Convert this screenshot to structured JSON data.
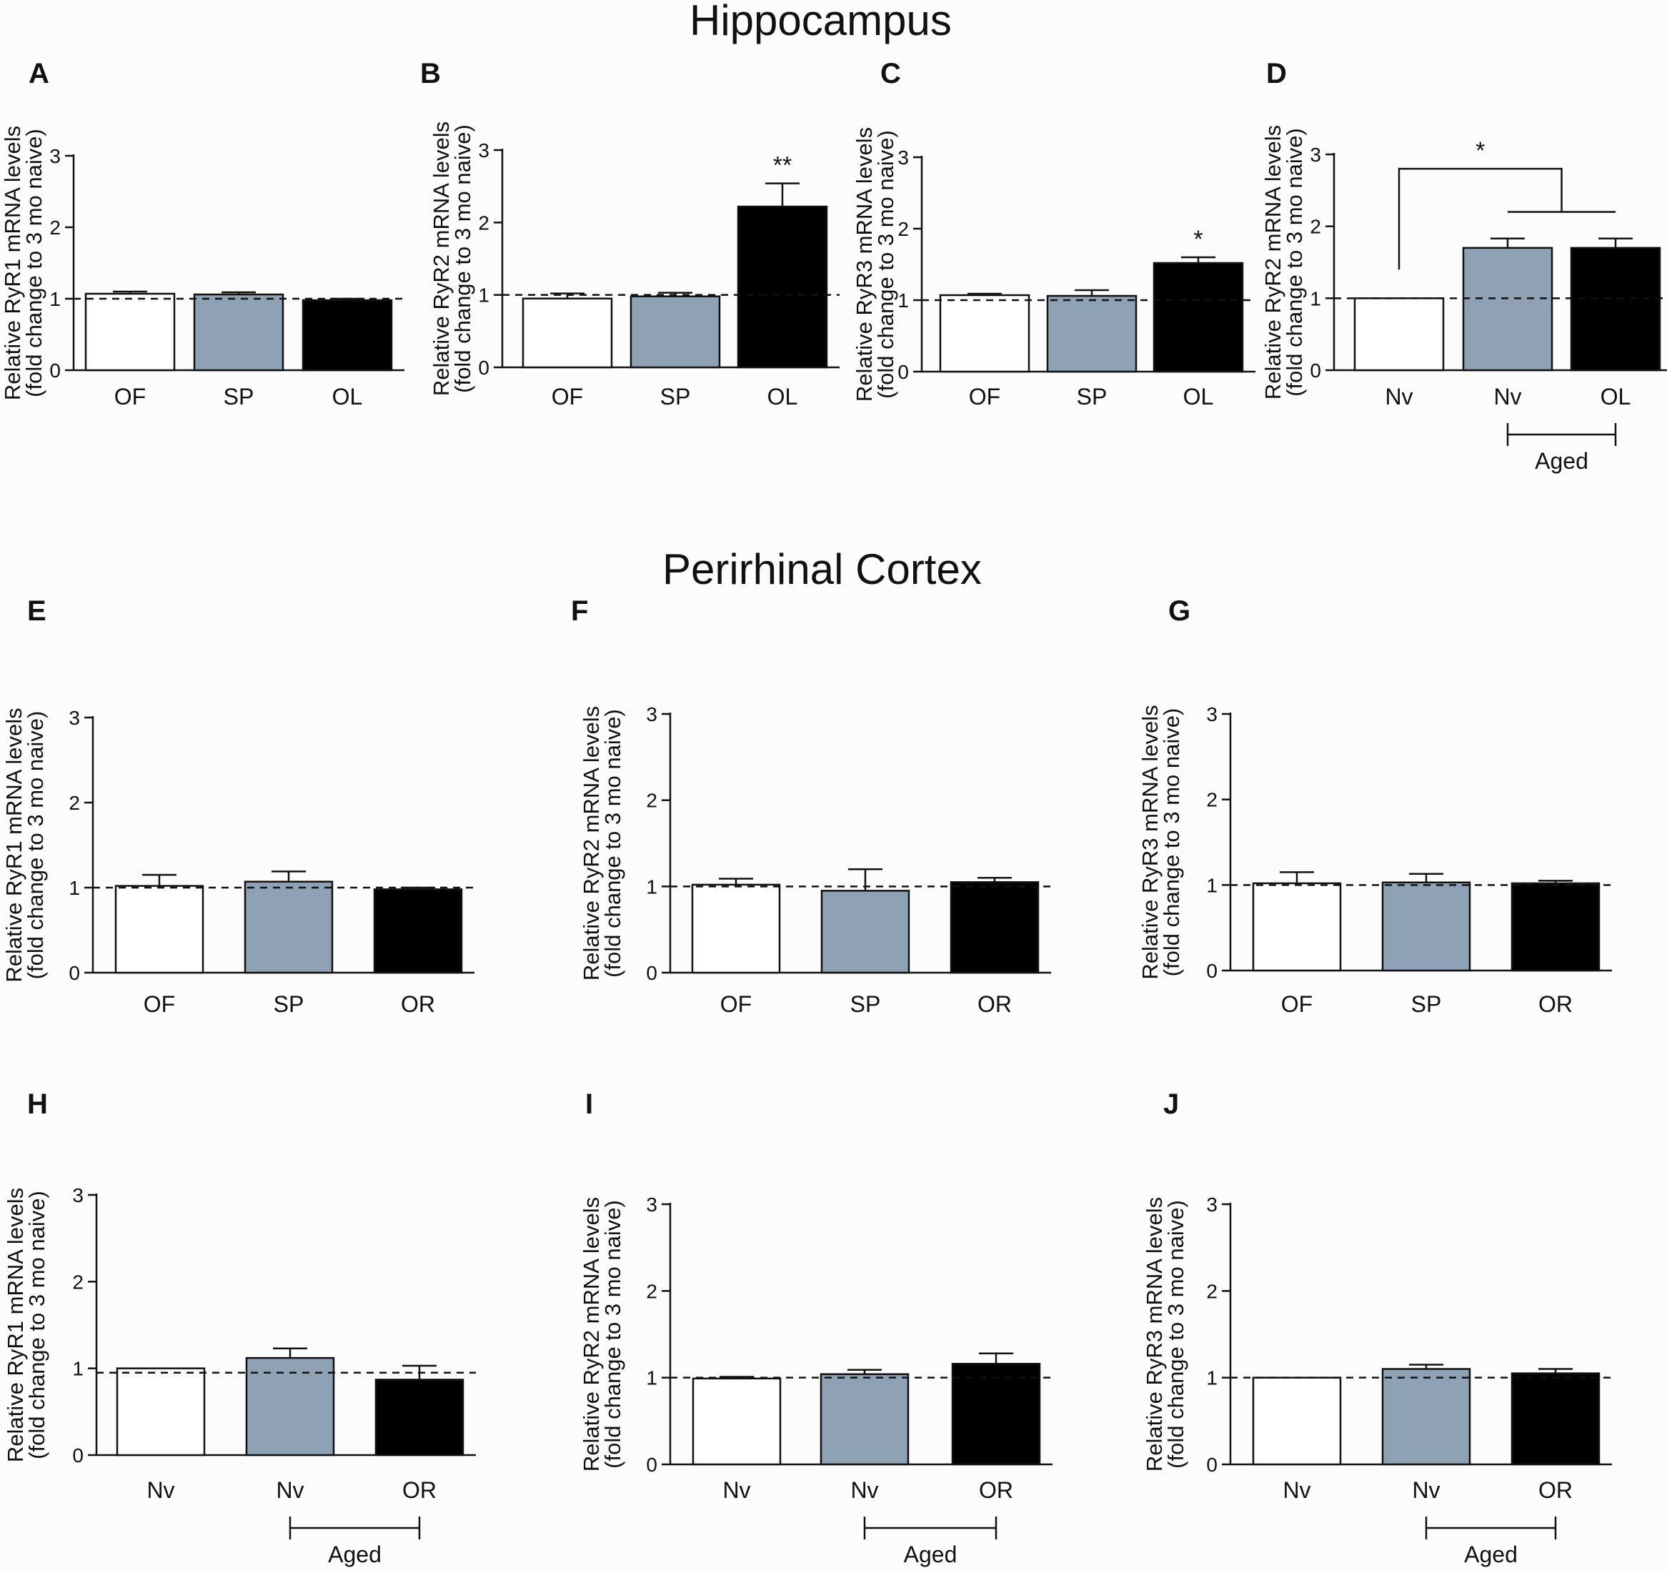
{
  "section_titles": {
    "hippocampus": "Hippocampus",
    "perirhinal": "Perirhinal Cortex"
  },
  "colors": {
    "white_bar": "#ffffff",
    "gray_bar": "#8fa1b5",
    "black_bar": "#000000",
    "axis": "#111111"
  },
  "chart_data": [
    {
      "panel": "A",
      "type": "bar",
      "region": "Hippocampus",
      "ylabel_line1": "Relative RyR1 mRNA levels",
      "ylabel_line2": "(fold change to 3 mo naive)",
      "ylim": [
        0,
        3
      ],
      "yticks": [
        "0",
        "1",
        "2",
        "3"
      ],
      "reference_line": 1,
      "categories": [
        "OF",
        "SP",
        "OL"
      ],
      "values": [
        1.07,
        1.06,
        0.98
      ],
      "errors": [
        0.03,
        0.03,
        0.02
      ],
      "fills": [
        "white",
        "gray",
        "black"
      ],
      "bar_annotations": [
        "",
        "",
        ""
      ],
      "group_bracket": null,
      "significance_bracket": null
    },
    {
      "panel": "B",
      "type": "bar",
      "region": "Hippocampus",
      "ylabel_line1": "Relative RyR2 mRNA levels",
      "ylabel_line2": "(fold change to 3 mo naive)",
      "ylim": [
        0,
        3
      ],
      "yticks": [
        "0",
        "1",
        "2",
        "3"
      ],
      "reference_line": 1,
      "categories": [
        "OF",
        "SP",
        "OL"
      ],
      "values": [
        0.95,
        0.98,
        2.22
      ],
      "errors": [
        0.07,
        0.05,
        0.32
      ],
      "fills": [
        "white",
        "gray",
        "black"
      ],
      "bar_annotations": [
        "",
        "",
        "**"
      ],
      "group_bracket": null,
      "significance_bracket": null
    },
    {
      "panel": "C",
      "type": "bar",
      "region": "Hippocampus",
      "ylabel_line1": "Relative RyR3 mRNA levels",
      "ylabel_line2": "(fold change to 3 mo naive)",
      "ylim": [
        0,
        3
      ],
      "yticks": [
        "0",
        "1",
        "2",
        "3"
      ],
      "reference_line": 1,
      "categories": [
        "OF",
        "SP",
        "OL"
      ],
      "values": [
        1.07,
        1.06,
        1.52
      ],
      "errors": [
        0.02,
        0.08,
        0.08
      ],
      "fills": [
        "white",
        "gray",
        "black"
      ],
      "bar_annotations": [
        "",
        "",
        "*"
      ],
      "group_bracket": null,
      "significance_bracket": null
    },
    {
      "panel": "D",
      "type": "bar",
      "region": "Hippocampus",
      "ylabel_line1": "Relative RyR2 mRNA levels",
      "ylabel_line2": "(fold change to 3 mo naive)",
      "ylim": [
        0,
        3
      ],
      "yticks": [
        "0",
        "1",
        "2",
        "3"
      ],
      "reference_line": 1,
      "categories": [
        "Nv",
        "Nv",
        "OL"
      ],
      "values": [
        1.0,
        1.7,
        1.7
      ],
      "errors": [
        0.0,
        0.13,
        0.13
      ],
      "fills": [
        "white",
        "gray",
        "black"
      ],
      "bar_annotations": [
        "",
        "",
        ""
      ],
      "group_bracket": {
        "label": "Aged",
        "from": 1,
        "to": 2
      },
      "significance_bracket": {
        "label": "*",
        "left_bar": 0,
        "right_from": 1,
        "right_to": 2,
        "top_level": 2.8,
        "right_level": 2.2,
        "left_level": 1.4
      }
    },
    {
      "panel": "E",
      "type": "bar",
      "region": "Perirhinal Cortex",
      "ylabel_line1": "Relative RyR1 mRNA levels",
      "ylabel_line2": "(fold change to 3 mo naive)",
      "ylim": [
        0,
        3
      ],
      "yticks": [
        "0",
        "1",
        "2",
        "3"
      ],
      "reference_line": 1,
      "categories": [
        "OF",
        "SP",
        "OR"
      ],
      "values": [
        1.02,
        1.07,
        0.98
      ],
      "errors": [
        0.13,
        0.12,
        0.02
      ],
      "fills": [
        "white",
        "gray",
        "black"
      ],
      "bar_annotations": [
        "",
        "",
        ""
      ],
      "group_bracket": null,
      "significance_bracket": null
    },
    {
      "panel": "F",
      "type": "bar",
      "region": "Perirhinal Cortex",
      "ylabel_line1": "Relative RyR2 mRNA levels",
      "ylabel_line2": "(fold change to 3 mo naive)",
      "ylim": [
        0,
        3
      ],
      "yticks": [
        "0",
        "1",
        "2",
        "3"
      ],
      "reference_line": 1,
      "categories": [
        "OF",
        "SP",
        "OR"
      ],
      "values": [
        1.02,
        0.95,
        1.05
      ],
      "errors": [
        0.07,
        0.25,
        0.05
      ],
      "fills": [
        "white",
        "gray",
        "black"
      ],
      "bar_annotations": [
        "",
        "",
        ""
      ],
      "group_bracket": null,
      "significance_bracket": null
    },
    {
      "panel": "G",
      "type": "bar",
      "region": "Perirhinal Cortex",
      "ylabel_line1": "Relative RyR3 mRNA levels",
      "ylabel_line2": "(fold change to 3 mo naive)",
      "ylim": [
        0,
        3
      ],
      "yticks": [
        "0",
        "1",
        "2",
        "3"
      ],
      "reference_line": 1,
      "categories": [
        "OF",
        "SP",
        "OR"
      ],
      "values": [
        1.02,
        1.03,
        1.02
      ],
      "errors": [
        0.13,
        0.1,
        0.03
      ],
      "fills": [
        "white",
        "gray",
        "black"
      ],
      "bar_annotations": [
        "",
        "",
        ""
      ],
      "group_bracket": null,
      "significance_bracket": null
    },
    {
      "panel": "H",
      "type": "bar",
      "region": "Perirhinal Cortex",
      "ylabel_line1": "Relative RyR1 mRNA levels",
      "ylabel_line2": "(fold change to 3 mo naive)",
      "ylim": [
        0,
        3
      ],
      "yticks": [
        "0",
        "1",
        "2",
        "3"
      ],
      "reference_line": 0.95,
      "categories": [
        "Nv",
        "Nv",
        "OR"
      ],
      "values": [
        1.0,
        1.12,
        0.87
      ],
      "errors": [
        0.0,
        0.11,
        0.16
      ],
      "fills": [
        "white",
        "gray",
        "black"
      ],
      "bar_annotations": [
        "",
        "",
        ""
      ],
      "group_bracket": {
        "label": "Aged",
        "from": 1,
        "to": 2
      },
      "significance_bracket": null
    },
    {
      "panel": "I",
      "type": "bar",
      "region": "Perirhinal Cortex",
      "ylabel_line1": "Relative RyR2 mRNA levels",
      "ylabel_line2": "(fold change to 3 mo naive)",
      "ylim": [
        0,
        3
      ],
      "yticks": [
        "0",
        "1",
        "2",
        "3"
      ],
      "reference_line": 1,
      "categories": [
        "Nv",
        "Nv",
        "OR"
      ],
      "values": [
        0.99,
        1.04,
        1.16
      ],
      "errors": [
        0.02,
        0.05,
        0.12
      ],
      "fills": [
        "white",
        "gray",
        "black"
      ],
      "bar_annotations": [
        "",
        "",
        ""
      ],
      "group_bracket": {
        "label": "Aged",
        "from": 1,
        "to": 2
      },
      "significance_bracket": null
    },
    {
      "panel": "J",
      "type": "bar",
      "region": "Perirhinal Cortex",
      "ylabel_line1": "Relative RyR3 mRNA levels",
      "ylabel_line2": "(fold change to 3 mo naive)",
      "ylim": [
        0,
        3
      ],
      "yticks": [
        "0",
        "1",
        "2",
        "3"
      ],
      "reference_line": 1,
      "categories": [
        "Nv",
        "Nv",
        "OR"
      ],
      "values": [
        1.0,
        1.1,
        1.05
      ],
      "errors": [
        0.0,
        0.05,
        0.05
      ],
      "fills": [
        "white",
        "gray",
        "black"
      ],
      "bar_annotations": [
        "",
        "",
        ""
      ],
      "group_bracket": {
        "label": "Aged",
        "from": 1,
        "to": 2
      },
      "significance_bracket": null
    }
  ]
}
